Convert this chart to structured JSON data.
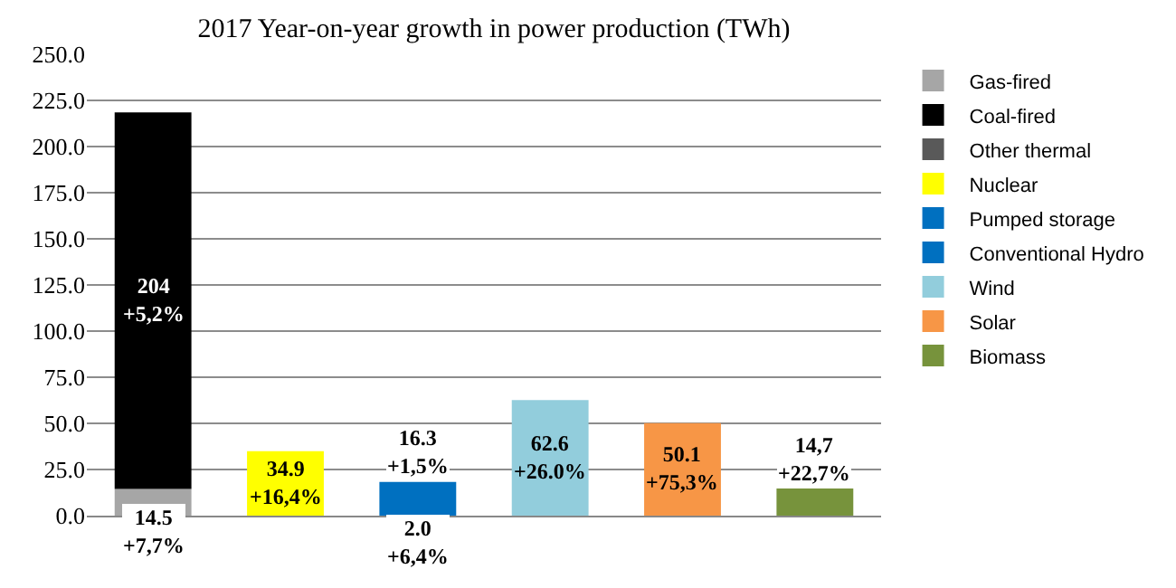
{
  "chart_data": {
    "type": "bar",
    "title": "2017 Year-on-year growth in power production (TWh)",
    "stacked": true,
    "categories": [
      null,
      null,
      null,
      null,
      null,
      null
    ],
    "series": [
      {
        "name": "Gas-fired",
        "color": "#a6a6a6",
        "values": [
          14.5,
          null,
          null,
          null,
          null,
          null
        ],
        "value_labels": [
          "14.5\n+7,7%",
          null,
          null,
          null,
          null,
          null
        ]
      },
      {
        "name": "Coal-fired",
        "color": "#000000",
        "values": [
          204,
          null,
          null,
          null,
          null,
          null
        ],
        "value_labels": [
          "204\n+5,2%",
          null,
          null,
          null,
          null,
          null
        ]
      },
      {
        "name": "Other thermal",
        "color": "#595959",
        "values": [
          null,
          null,
          null,
          null,
          null,
          null
        ]
      },
      {
        "name": "Nuclear",
        "color": "#ffff00",
        "values": [
          null,
          34.9,
          null,
          null,
          null,
          null
        ],
        "value_labels": [
          null,
          "34.9\n+16,4%",
          null,
          null,
          null,
          null
        ]
      },
      {
        "name": "Pumped storage",
        "color": "#0070c0",
        "values": [
          null,
          null,
          2.0,
          null,
          null,
          null
        ],
        "value_labels": [
          null,
          null,
          "2.0\n+6,4%",
          null,
          null,
          null
        ]
      },
      {
        "name": "Conventional Hydro",
        "color": "#0070c0",
        "values": [
          null,
          null,
          16.3,
          null,
          null,
          null
        ],
        "value_labels": [
          null,
          null,
          "16.3\n+1,5%",
          null,
          null,
          null
        ]
      },
      {
        "name": "Wind",
        "color": "#92cddc",
        "values": [
          null,
          null,
          null,
          62.6,
          null,
          null
        ],
        "value_labels": [
          null,
          null,
          null,
          "62.6\n+26.0%",
          null,
          null
        ]
      },
      {
        "name": "Solar",
        "color": "#f79646",
        "values": [
          null,
          null,
          null,
          null,
          50.1,
          null
        ],
        "value_labels": [
          null,
          null,
          null,
          null,
          "50.1\n+75,3%",
          null
        ]
      },
      {
        "name": "Biomass",
        "color": "#77933c",
        "values": [
          null,
          null,
          null,
          null,
          null,
          14.7
        ],
        "value_labels": [
          null,
          null,
          null,
          null,
          null,
          "14,7\n+22,7%"
        ]
      }
    ],
    "ylim": [
      0,
      250
    ],
    "yticks": [
      {
        "value": 0,
        "label": "0.0"
      },
      {
        "value": 25,
        "label": "25.0"
      },
      {
        "value": 50,
        "label": "50.0"
      },
      {
        "value": 75,
        "label": "75.0"
      },
      {
        "value": 100,
        "label": "100.0"
      },
      {
        "value": 125,
        "label": "125.0"
      },
      {
        "value": 150,
        "label": "150.0"
      },
      {
        "value": 175,
        "label": "175.0"
      },
      {
        "value": 200,
        "label": "200.0"
      },
      {
        "value": 225,
        "label": "225.0"
      },
      {
        "value": 250,
        "label": "250.0"
      }
    ],
    "grid": "y",
    "legend": "right"
  }
}
